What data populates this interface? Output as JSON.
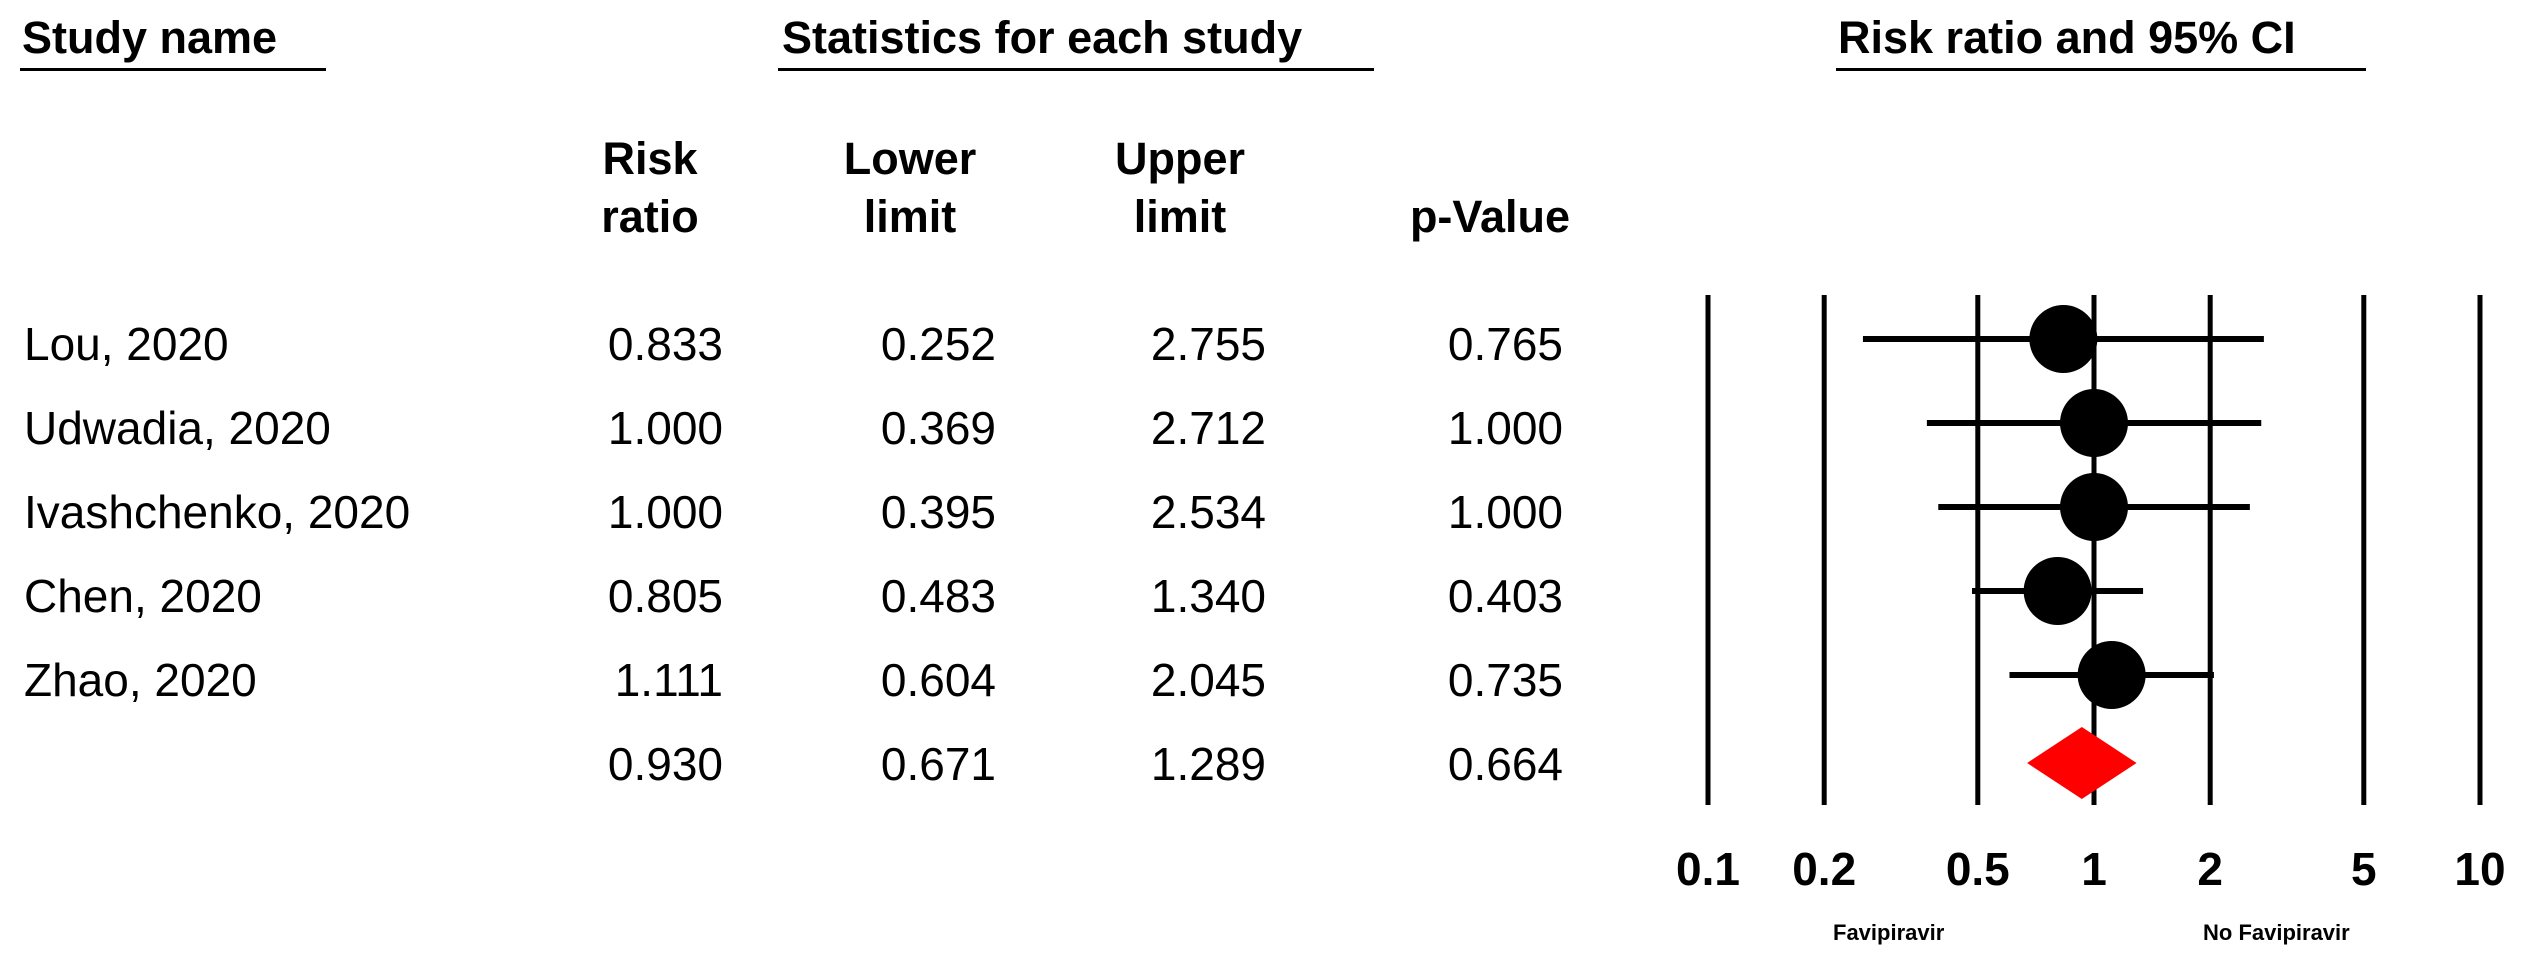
{
  "headers": {
    "study_name": "Study name",
    "statistics": "Statistics for each study",
    "plot": "Risk ratio and 95% CI"
  },
  "columns": {
    "risk_ratio": [
      "Risk",
      "ratio"
    ],
    "lower_limit": [
      "Lower",
      "limit"
    ],
    "upper_limit": [
      "Upper",
      "limit"
    ],
    "p_value": [
      "",
      "p-Value"
    ]
  },
  "rows": [
    {
      "study": "Lou, 2020",
      "risk_ratio": "0.833",
      "lower": "0.252",
      "upper": "2.755",
      "p": "0.765"
    },
    {
      "study": "Udwadia, 2020",
      "risk_ratio": "1.000",
      "lower": "0.369",
      "upper": "2.712",
      "p": "1.000"
    },
    {
      "study": "Ivashchenko, 2020",
      "risk_ratio": "1.000",
      "lower": "0.395",
      "upper": "2.534",
      "p": "1.000"
    },
    {
      "study": "Chen, 2020",
      "risk_ratio": "0.805",
      "lower": "0.483",
      "upper": "1.340",
      "p": "0.403"
    },
    {
      "study": "Zhao, 2020",
      "risk_ratio": "1.111",
      "lower": "0.604",
      "upper": "2.045",
      "p": "0.735"
    },
    {
      "study": "",
      "risk_ratio": "0.930",
      "lower": "0.671",
      "upper": "1.289",
      "p": "0.664"
    }
  ],
  "chart_data": {
    "type": "forest",
    "title": "Risk ratio and 95% CI",
    "x_scale": "log",
    "xlim": [
      0.1,
      10
    ],
    "ticks": [
      0.1,
      0.2,
      0.5,
      1,
      2,
      5,
      10
    ],
    "tick_labels": [
      "0.1",
      "0.2",
      "0.5",
      "1",
      "2",
      "5",
      "10"
    ],
    "studies": [
      {
        "name": "Lou, 2020",
        "estimate": 0.833,
        "lower": 0.252,
        "upper": 2.755
      },
      {
        "name": "Udwadia, 2020",
        "estimate": 1.0,
        "lower": 0.369,
        "upper": 2.712
      },
      {
        "name": "Ivashchenko, 2020",
        "estimate": 1.0,
        "lower": 0.395,
        "upper": 2.534
      },
      {
        "name": "Chen, 2020",
        "estimate": 0.805,
        "lower": 0.483,
        "upper": 1.34
      },
      {
        "name": "Zhao, 2020",
        "estimate": 1.111,
        "lower": 0.604,
        "upper": 2.045
      }
    ],
    "summary": {
      "estimate": 0.93,
      "lower": 0.671,
      "upper": 1.289
    },
    "left_label": "Favipiravir",
    "right_label": "No Favipiravir",
    "colors": {
      "marker": "#000000",
      "summary": "#ff0000"
    }
  }
}
